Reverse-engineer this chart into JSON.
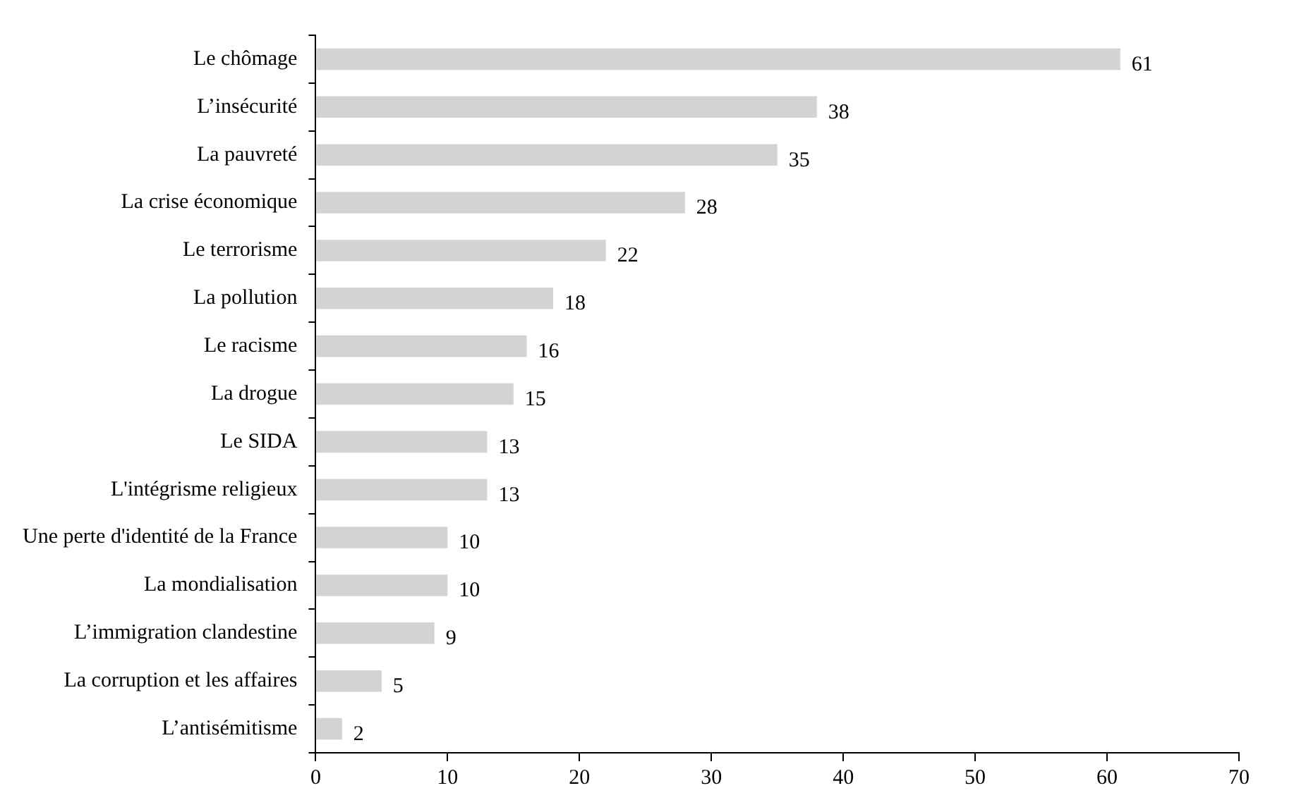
{
  "chart_data": {
    "type": "bar",
    "orientation": "horizontal",
    "categories": [
      "Le chômage",
      "L’insécurité",
      "La pauvreté",
      "La crise économique",
      "Le terrorisme",
      "La pollution",
      "Le racisme",
      "La drogue",
      "Le SIDA",
      "L'intégrisme religieux",
      "Une perte d'identité de la France",
      "La mondialisation",
      "L’immigration clandestine",
      "La corruption et les affaires",
      "L’antisémitisme"
    ],
    "values": [
      61,
      38,
      35,
      28,
      22,
      18,
      16,
      15,
      13,
      13,
      10,
      10,
      9,
      5,
      2
    ],
    "color": "#d3d3d3",
    "xlim": [
      0,
      70
    ],
    "xticks": [
      0,
      10,
      20,
      30,
      40,
      50,
      60,
      70
    ],
    "grid": false,
    "legend": false,
    "data_labels": true
  }
}
